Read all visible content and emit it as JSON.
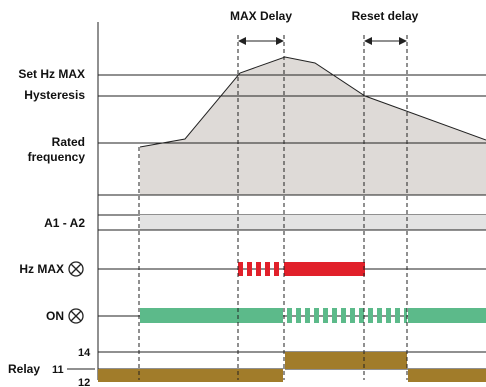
{
  "labels": {
    "max_delay": "MAX Delay",
    "reset_delay": "Reset delay",
    "set_hz_max": "Set Hz MAX",
    "hysteresis": "Hysteresis",
    "rated_line1": "Rated",
    "rated_line2": "frequency",
    "a1_a2": "A1 - A2",
    "hz_max": "Hz MAX",
    "on": "ON",
    "relay": "Relay",
    "relay_11": "11",
    "relay_14": "14",
    "relay_12": "12"
  },
  "colors": {
    "frequency_fill": "#dedad7",
    "supply_bar": "#e3e3e3",
    "hz_max_led": "#e1202a",
    "on_led": "#5cba8a",
    "relay_contact": "#a17c2a",
    "line": "#222222"
  },
  "icons": {
    "led_indicator": "circle-cross-icon"
  }
}
